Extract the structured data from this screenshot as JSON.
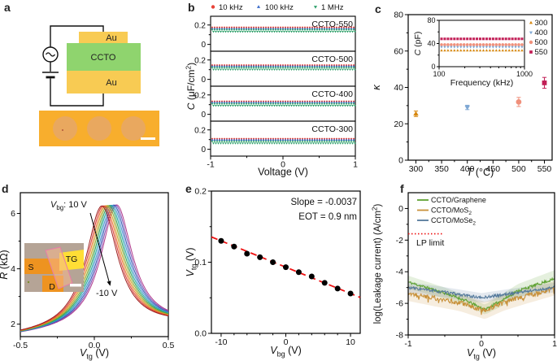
{
  "panel_labels": {
    "a": "a",
    "b": "b",
    "c": "c",
    "d": "d",
    "e": "e",
    "f": "f"
  },
  "panel_a": {
    "circuit": {
      "top_electrode": "Au",
      "dielectric": "CCTO",
      "bottom_electrode": "Au"
    },
    "colors": {
      "gold": "#F8CB53",
      "ccto_green": "#8FD46E",
      "wire": "#111111",
      "micrograph_bg": "#F8AE2D",
      "pad": "#E7A765",
      "scalebar": "#FFFFFF"
    }
  },
  "panel_d_inset": {
    "labels": {
      "source": "S",
      "top_gate": "TG",
      "drain": "D"
    },
    "colors": {
      "bg": "#B5A496",
      "source_band": "#EE9320",
      "tg_band": "#FFDE35",
      "flake_fill": "rgba(246,183,140,0.55)",
      "flake_edge": "#E87CA8",
      "scalebar": "#FFFFFF"
    }
  },
  "chart_data": [
    {
      "panel": "b",
      "type": "line",
      "legend": [
        {
          "label": "10 kHz",
          "color": "#E84338",
          "marker": "circle"
        },
        {
          "label": "100 kHz",
          "color": "#3A6BC9",
          "marker": "tri-up"
        },
        {
          "label": "1 MHz",
          "color": "#2FA06B",
          "marker": "tri-down"
        }
      ],
      "xlabel": "Voltage (V)",
      "ylabel": "*C* (μF/cm^{2})",
      "xlim": [
        -1,
        1
      ],
      "xticks": [
        [
          -1,
          "-1"
        ],
        [
          0,
          "0"
        ],
        [
          1,
          "1"
        ]
      ],
      "xminor": [
        -0.5,
        0.5
      ],
      "sub_ylim": [
        -0.07,
        0.29
      ],
      "sub_yticks": [
        [
          0.2,
          "0.2"
        ],
        [
          0,
          "0"
        ]
      ],
      "sub_yminor": [
        0.1
      ],
      "subplots": [
        {
          "title": "CCTO-550",
          "values": [
            0.175,
            0.163,
            0.142
          ]
        },
        {
          "title": "CCTO-500",
          "values": [
            0.146,
            0.136,
            0.112
          ]
        },
        {
          "title": "CCTO-400",
          "values": [
            0.133,
            0.124,
            0.1
          ]
        },
        {
          "title": "CCTO-300",
          "values": [
            0.108,
            0.098,
            0.073
          ]
        }
      ]
    },
    {
      "panel": "c",
      "type": "scatter",
      "xlabel": "*T* (°C)",
      "ylabel": "*κ*",
      "xlim": [
        285,
        565
      ],
      "ylim": [
        0,
        80
      ],
      "xticks": [
        [
          300,
          "300"
        ],
        [
          350,
          "350"
        ],
        [
          400,
          "400"
        ],
        [
          450,
          "450"
        ],
        [
          500,
          "500"
        ],
        [
          550,
          "550"
        ]
      ],
      "xminor": [
        325,
        375,
        425,
        475,
        525
      ],
      "yticks": [
        [
          0,
          "0"
        ],
        [
          20,
          "20"
        ],
        [
          40,
          "40"
        ],
        [
          60,
          "60"
        ],
        [
          80,
          "80"
        ]
      ],
      "yminor": [
        10,
        30,
        50,
        70
      ],
      "points": [
        {
          "T": 300,
          "kappa": 25.5,
          "err": 1.5,
          "color": "#D6870F",
          "marker": "tri-up",
          "label": "300"
        },
        {
          "T": 400,
          "kappa": 29,
          "err": 1.2,
          "color": "#7FA8D4",
          "marker": "tri-down",
          "label": "400"
        },
        {
          "T": 500,
          "kappa": 32,
          "err": 2.5,
          "color": "#F0907B",
          "marker": "circle",
          "label": "500"
        },
        {
          "T": 550,
          "kappa": 42.5,
          "err": 3,
          "color": "#C21E56",
          "marker": "square",
          "label": "550"
        }
      ],
      "inset": {
        "xlabel": "Frequency (kHz)",
        "ylabel": "*C* (pF)",
        "x_log_range": [
          100,
          1000
        ],
        "ylim": [
          0,
          80
        ],
        "yticks": [
          [
            0,
            "0"
          ],
          [
            40,
            "40"
          ],
          [
            80,
            "80"
          ]
        ],
        "yminor": [
          20,
          60
        ],
        "xticks": [
          [
            100,
            "100"
          ],
          [
            1000,
            "1000"
          ]
        ],
        "series": [
          {
            "label": "300",
            "value": 28,
            "color": "#D6870F",
            "marker": "tri-up"
          },
          {
            "label": "400",
            "value": 34,
            "color": "#7FA8D4",
            "marker": "tri-down"
          },
          {
            "label": "500",
            "value": 38,
            "color": "#F0907B",
            "marker": "circle"
          },
          {
            "label": "550",
            "value": 48,
            "color": "#C21E56",
            "marker": "square"
          }
        ]
      }
    },
    {
      "panel": "d",
      "type": "line",
      "xlabel": "*V*_{tg} (V)",
      "ylabel": "*R* (kΩ)",
      "xlim": [
        -0.5,
        0.5
      ],
      "ylim": [
        1.55,
        6.75
      ],
      "xticks": [
        [
          -0.5,
          "-0.5"
        ],
        [
          0,
          "0.0"
        ],
        [
          0.5,
          "0.5"
        ]
      ],
      "xminor": [
        -0.25,
        0.25
      ],
      "yticks": [
        [
          2,
          "2"
        ],
        [
          4,
          "4"
        ],
        [
          6,
          "6"
        ]
      ],
      "yminor": [
        3,
        5
      ],
      "annotation_start": "*V*_{bg}: 10 V",
      "annotation_end": "-10 V",
      "vbg_range": [
        10,
        -10
      ],
      "curves": {
        "count": 11,
        "center_first": 0.05,
        "center_last": 0.15,
        "base": 1.55,
        "amp": 4.5,
        "width": 0.13,
        "tilt": 0.4
      },
      "colors": [
        "#9E1F1F",
        "#D93A33",
        "#E8702A",
        "#C9A227",
        "#86A82F",
        "#2E9E5B",
        "#1FA8A0",
        "#4B8FD4",
        "#3356B0",
        "#7E4FB5",
        "#B03A8C"
      ]
    },
    {
      "panel": "e",
      "type": "scatter",
      "xlabel": "*V*_{bg} (V)",
      "ylabel": "*V*_{tg} (V)",
      "xlim": [
        -11.5,
        11.5
      ],
      "ylim": [
        0,
        0.2
      ],
      "xticks": [
        [
          -10,
          "-10"
        ],
        [
          0,
          "0"
        ],
        [
          10,
          "10"
        ]
      ],
      "xminor": [
        -8,
        -6,
        -4,
        -2,
        2,
        4,
        6,
        8
      ],
      "yticks": [
        [
          0,
          "0.0"
        ],
        [
          0.1,
          "0.1"
        ],
        [
          0.2,
          "0.2"
        ]
      ],
      "yminor": [
        0.05,
        0.15
      ],
      "points_x": [
        -10,
        -8,
        -6,
        -4,
        -2,
        0,
        2,
        4,
        6,
        8,
        10
      ],
      "points_y": [
        0.13,
        0.122,
        0.112,
        0.107,
        0.1,
        0.093,
        0.086,
        0.08,
        0.071,
        0.063,
        0.056
      ],
      "point_color": "#000000",
      "fit": {
        "slope": -0.0037,
        "intercept": 0.093,
        "color": "#EE1111",
        "style": "dashed"
      },
      "annotations": [
        "Slope = -0.0037",
        "EOT = 0.9 nm"
      ]
    },
    {
      "panel": "f",
      "type": "line",
      "xlabel": "*V*_{tg} (V)",
      "ylabel": "log(Leakage current) (A/cm^{2})",
      "xlim": [
        -1,
        1
      ],
      "ylim": [
        -8,
        1
      ],
      "xticks": [
        [
          -1,
          "-1"
        ],
        [
          0,
          "0"
        ],
        [
          1,
          "1"
        ]
      ],
      "xminor": [
        -0.5,
        0.5
      ],
      "yticks": [
        [
          0,
          "0"
        ],
        [
          -2,
          "-2"
        ],
        [
          -4,
          "-4"
        ],
        [
          -6,
          "-6"
        ],
        [
          -8,
          "-8"
        ]
      ],
      "yminor": [
        -1,
        -3,
        -5,
        -7
      ],
      "lp_limit": {
        "value": -1.6,
        "label": "LP limit",
        "color": "#EE1111"
      },
      "series": [
        {
          "label": "CCTO/Graphene",
          "color": "#5FA233",
          "seed": 11,
          "noise": 0.09,
          "ax": [
            -1,
            -0.5,
            -0.2,
            0.05,
            0.3,
            0.5,
            1
          ],
          "ay": [
            -4.65,
            -5.35,
            -5.85,
            -6.4,
            -5.75,
            -5.2,
            -4.45
          ],
          "bx": [
            -1,
            0,
            1
          ],
          "bw": [
            0.4,
            0.3,
            0.55
          ]
        },
        {
          "label": "CCTO/MoS_{2}",
          "color": "#C8913A",
          "seed": 22,
          "noise": 0.15,
          "ax": [
            -1,
            -0.6,
            -0.3,
            0.05,
            0.3,
            0.6,
            1
          ],
          "ay": [
            -5.35,
            -5.7,
            -5.95,
            -6.45,
            -5.95,
            -5.55,
            -5.05
          ],
          "bx": [
            -1,
            0,
            1
          ],
          "bw": [
            0.5,
            0.55,
            0.45
          ]
        },
        {
          "label": "CCTO/MoSe_{2}",
          "color": "#54799B",
          "seed": 33,
          "noise": 0.09,
          "ax": [
            -1,
            -0.5,
            0,
            0.3,
            0.6,
            1
          ],
          "ay": [
            -5.0,
            -5.3,
            -5.65,
            -5.45,
            -5.25,
            -5.0
          ],
          "bx": [
            -1,
            0,
            1
          ],
          "bw": [
            0.35,
            0.3,
            0.3
          ]
        }
      ]
    }
  ]
}
